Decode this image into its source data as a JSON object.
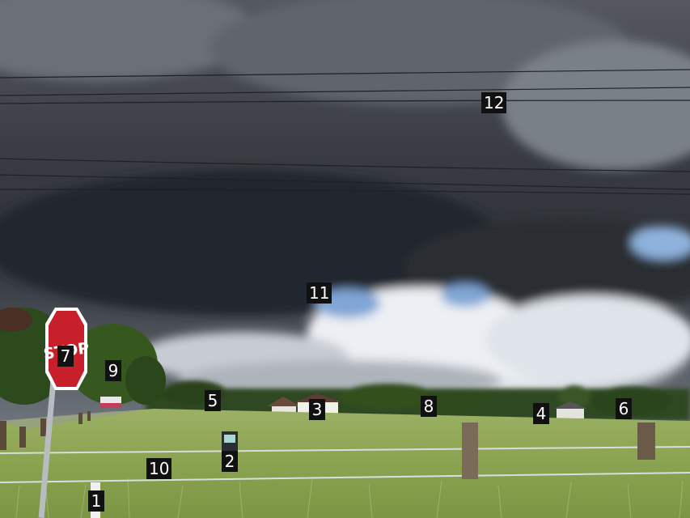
{
  "sign": {
    "text": "STOP",
    "color": "#c8202a"
  },
  "colors": {
    "sky_dark": "#2c3036",
    "sky_mid": "#5c626a",
    "cloud_light": "#e8ecf0",
    "blue_sky": "#7fa6d6",
    "grass": "#8fa654",
    "trees": "#2e4a1e"
  },
  "markers": [
    {
      "id": "1",
      "label": "1"
    },
    {
      "id": "2",
      "label": "2"
    },
    {
      "id": "3",
      "label": "3"
    },
    {
      "id": "4",
      "label": "4"
    },
    {
      "id": "5",
      "label": "5"
    },
    {
      "id": "6",
      "label": "6"
    },
    {
      "id": "7",
      "label": "7"
    },
    {
      "id": "8",
      "label": "8"
    },
    {
      "id": "9",
      "label": "9"
    },
    {
      "id": "10",
      "label": "10"
    },
    {
      "id": "11",
      "label": "11"
    },
    {
      "id": "12",
      "label": "12"
    }
  ]
}
